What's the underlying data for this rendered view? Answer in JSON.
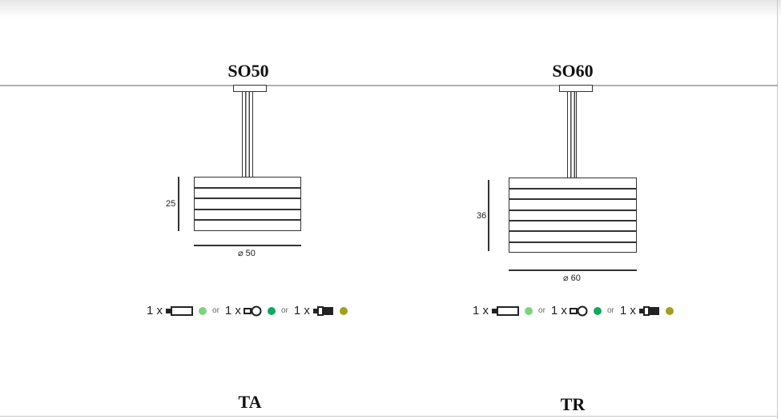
{
  "models": [
    {
      "title": "SO50",
      "height_label": "25",
      "diameter_label": "⌀ 50",
      "code": "TA"
    },
    {
      "title": "SO60",
      "height_label": "36",
      "diameter_label": "⌀ 60",
      "code": "TR"
    }
  ],
  "bulbs": [
    {
      "qty": "1 x",
      "icon": "tube-bulb-icon",
      "color": "#7fd37f"
    },
    {
      "qty": "1 x",
      "icon": "globe-bulb-icon",
      "color": "#10a860"
    },
    {
      "qty": "1 x",
      "icon": "halogen-bulb-icon",
      "color": "#a0a020"
    }
  ],
  "or_label": "or"
}
